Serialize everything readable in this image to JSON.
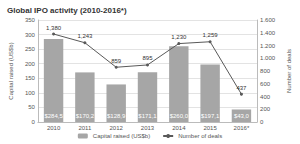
{
  "chart_data": {
    "type": "bar",
    "title": "Global IPO activity (2010-2016*)",
    "categories": [
      "2010",
      "2011",
      "2012",
      "2013",
      "2014",
      "2015",
      "2016*"
    ],
    "series": [
      {
        "name": "Capital raised (US$b)",
        "type": "bar",
        "color": "#a6a6a6",
        "values": [
          284.5,
          170.2,
          128.9,
          171.1,
          260.0,
          197.1,
          43.0
        ],
        "value_labels": [
          "$284,5",
          "$170,2",
          "$128,9",
          "$171,1",
          "$260,0",
          "$197,1",
          "$43,0"
        ]
      },
      {
        "name": "Number of deals",
        "type": "line",
        "color": "#595959",
        "axis": "y2",
        "marker": "circle",
        "values": [
          1380,
          1243,
          859,
          895,
          1230,
          1259,
          437
        ],
        "value_labels": [
          "1,380",
          "1,243",
          "859",
          "895",
          "1,230",
          "1,259",
          "437"
        ]
      }
    ],
    "ylabel": "Capital raised (US$b)",
    "y2label": "Number of deals",
    "ylim": [
      0,
      350
    ],
    "yticks": [
      0,
      50,
      100,
      150,
      200,
      250,
      300,
      350
    ],
    "y2lim": [
      0,
      1600
    ],
    "y2ticks": [
      0,
      200,
      400,
      600,
      800,
      {
        "value": 1000,
        "label": "1.000"
      },
      {
        "value": 1200,
        "label": "1.200"
      },
      {
        "value": 1400,
        "label": "1.400"
      },
      {
        "value": 1600,
        "label": "1.600"
      }
    ],
    "data_labels": true,
    "grid": true,
    "legend": "bottom"
  }
}
